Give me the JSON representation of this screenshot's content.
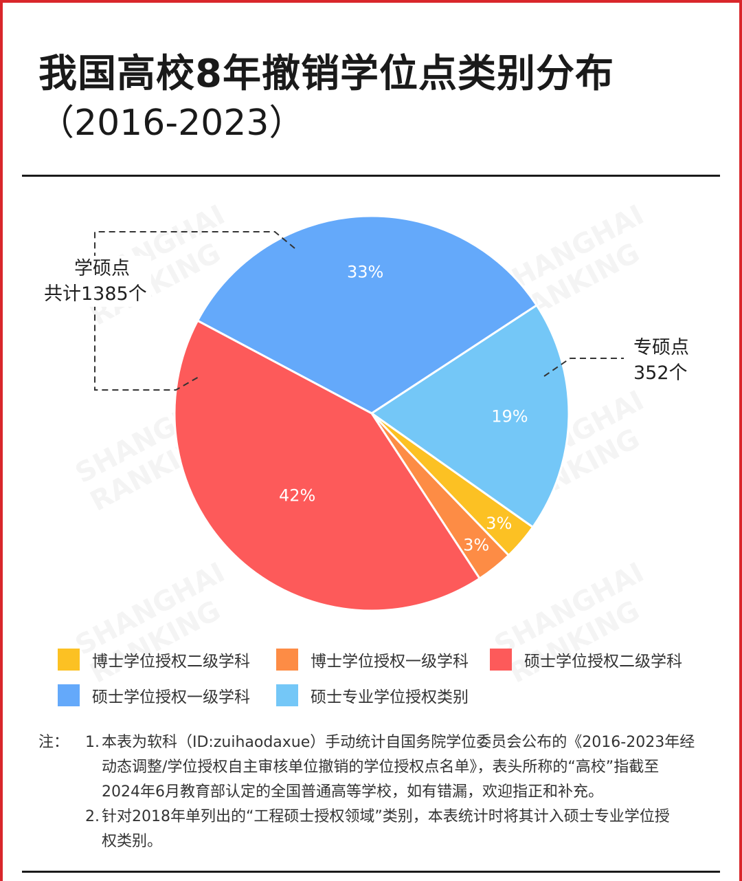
{
  "title": "我国高校8年撤销学位点类别分布",
  "subtitle": "（2016-2023）",
  "annotations": {
    "master_academic_line1": "学硕点",
    "master_academic_line2": "共计1385个",
    "master_professional_line1": "专硕点",
    "master_professional_line2": "352个"
  },
  "watermark": {
    "line1": "SHANGHAI",
    "line2": "RANKING"
  },
  "chart_data": {
    "type": "pie",
    "slices": [
      {
        "label": "硕士学位授权一级学科",
        "value": 33,
        "display": "33%",
        "color": "#64a9fa"
      },
      {
        "label": "硕士专业学位授权类别",
        "value": 19,
        "display": "19%",
        "color": "#74c7f7"
      },
      {
        "label": "博士学位授权二级学科",
        "value": 3,
        "display": "3%",
        "color": "#fcc123"
      },
      {
        "label": "博士学位授权一级学科",
        "value": 3,
        "display": "3%",
        "color": "#fd8c45"
      },
      {
        "label": "硕士学位授权二级学科",
        "value": 42,
        "display": "42%",
        "color": "#fd5a5a"
      }
    ],
    "legend_order": [
      "博士学位授权二级学科",
      "博士学位授权一级学科",
      "硕士学位授权二级学科",
      "硕士学位授权一级学科",
      "硕士专业学位授权类别"
    ]
  },
  "notes": {
    "prefix": "注：",
    "items": [
      {
        "num": "1.",
        "lines": [
          "本表为软科（ID:zuihaodaxue）手动统计自国务院学位委员会公布的《2016-2023年经",
          "动态调整/学位授权自主审核单位撤销的学位授权点名单》，表头所称的“高校”指截至",
          "2024年6月教育部认定的全国普通高等学校，如有错漏，欢迎指正和补充。"
        ]
      },
      {
        "num": "2.",
        "lines": [
          "针对2018年单列出的“工程硕士授权领域”类别，本表统计时将其计入硕士专业学位授",
          "权类别。"
        ]
      }
    ]
  }
}
